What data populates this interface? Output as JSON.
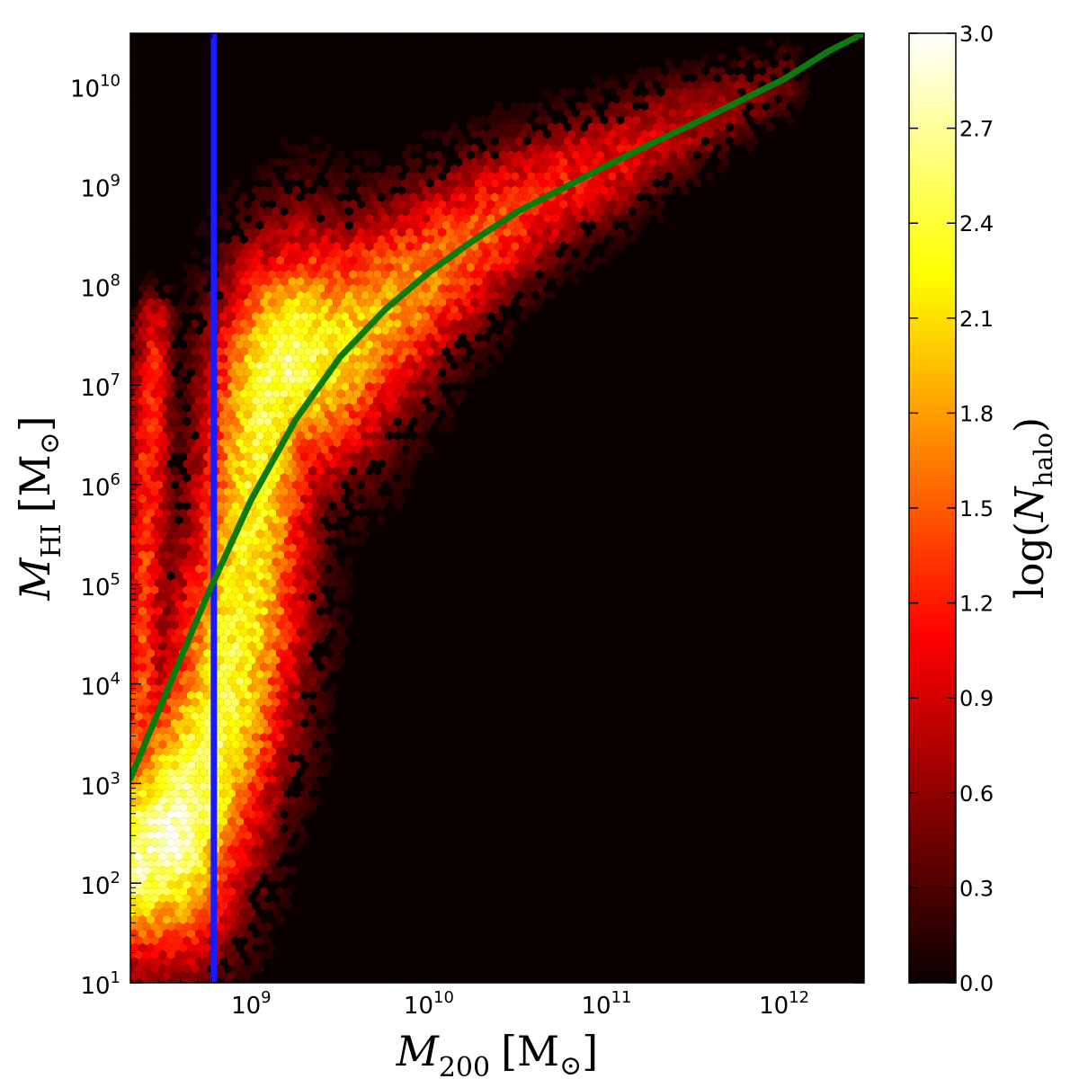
{
  "chart_data": {
    "type": "heatmap",
    "subtype": "hexbin",
    "title": "",
    "xlabel": {
      "symbol": "M",
      "sub": "200",
      "unit": "[M",
      "unit_sub": "⊙",
      "unit_close": "]"
    },
    "ylabel": {
      "symbol": "M",
      "sub": "HI",
      "unit": "[M",
      "unit_sub": "⊙",
      "unit_close": "]"
    },
    "x_scale": "log",
    "y_scale": "log",
    "xlim_log10": [
      8.32,
      12.45
    ],
    "ylim_log10": [
      1.0,
      10.53
    ],
    "x_ticks": [
      {
        "exp": 9,
        "base": "10",
        "sup": "9"
      },
      {
        "exp": 10,
        "base": "10",
        "sup": "10"
      },
      {
        "exp": 11,
        "base": "10",
        "sup": "11"
      },
      {
        "exp": 12,
        "base": "10",
        "sup": "12"
      }
    ],
    "y_ticks": [
      {
        "exp": 1,
        "base": "10",
        "sup": "1"
      },
      {
        "exp": 2,
        "base": "10",
        "sup": "2"
      },
      {
        "exp": 3,
        "base": "10",
        "sup": "3"
      },
      {
        "exp": 4,
        "base": "10",
        "sup": "4"
      },
      {
        "exp": 5,
        "base": "10",
        "sup": "5"
      },
      {
        "exp": 6,
        "base": "10",
        "sup": "6"
      },
      {
        "exp": 7,
        "base": "10",
        "sup": "7"
      },
      {
        "exp": 8,
        "base": "10",
        "sup": "8"
      },
      {
        "exp": 9,
        "base": "10",
        "sup": "9"
      },
      {
        "exp": 10,
        "base": "10",
        "sup": "10"
      }
    ],
    "colorbar": {
      "label": {
        "fn": "log(",
        "symbol": "N",
        "sub": "halo",
        "close": ")"
      },
      "range": [
        0.0,
        3.0
      ],
      "ticks": [
        "0.0",
        "0.3",
        "0.6",
        "0.9",
        "1.2",
        "1.5",
        "1.8",
        "2.1",
        "2.4",
        "2.7",
        "3.0"
      ],
      "colormap": "hot"
    },
    "background_color": "#0a0000",
    "vertical_line": {
      "x_log10": 8.79,
      "color": "#1a1aff"
    },
    "fit_curve": {
      "color": "#0d7a0d",
      "points_log10": [
        [
          8.32,
          3.05
        ],
        [
          8.5,
          3.82
        ],
        [
          8.75,
          4.88
        ],
        [
          9.0,
          5.85
        ],
        [
          9.25,
          6.65
        ],
        [
          9.5,
          7.28
        ],
        [
          9.75,
          7.75
        ],
        [
          10.0,
          8.13
        ],
        [
          10.25,
          8.45
        ],
        [
          10.5,
          8.74
        ],
        [
          10.75,
          8.97
        ],
        [
          11.0,
          9.2
        ],
        [
          11.25,
          9.42
        ],
        [
          11.5,
          9.63
        ],
        [
          11.75,
          9.85
        ],
        [
          12.0,
          10.07
        ],
        [
          12.25,
          10.35
        ],
        [
          12.45,
          10.53
        ]
      ]
    },
    "density_ridges": [
      {
        "points_log10": [
          [
            8.32,
            2.2
          ],
          [
            8.55,
            2.5
          ],
          [
            8.7,
            3.0
          ],
          [
            8.85,
            3.8
          ],
          [
            8.95,
            4.8
          ],
          [
            9.0,
            5.6
          ],
          [
            9.05,
            6.4
          ],
          [
            9.1,
            7.0
          ],
          [
            9.2,
            7.25
          ],
          [
            9.3,
            7.3
          ],
          [
            9.45,
            7.35
          ],
          [
            9.6,
            7.55
          ],
          [
            9.8,
            7.8
          ],
          [
            10.0,
            8.1
          ],
          [
            10.25,
            8.45
          ],
          [
            10.5,
            8.75
          ],
          [
            10.75,
            9.0
          ],
          [
            11.0,
            9.2
          ],
          [
            11.25,
            9.45
          ],
          [
            11.5,
            9.65
          ],
          [
            11.75,
            9.85
          ],
          [
            12.0,
            10.05
          ]
        ],
        "width_log10": [
          0.28,
          0.35,
          0.33,
          0.33,
          0.32,
          0.3,
          0.3,
          0.3,
          0.33,
          0.35,
          0.33,
          0.3,
          0.27,
          0.24,
          0.22,
          0.2,
          0.18,
          0.17,
          0.15,
          0.14,
          0.12,
          0.1
        ],
        "peak_log10": [
          2.7,
          2.85,
          2.6,
          2.4,
          2.3,
          2.25,
          2.3,
          2.5,
          2.6,
          2.45,
          2.2,
          2.0,
          1.85,
          1.7,
          1.55,
          1.35,
          1.2,
          1.05,
          0.9,
          0.75,
          0.6,
          0.45
        ]
      },
      {
        "points_log10": [
          [
            8.34,
            2.0
          ],
          [
            8.36,
            3.0
          ],
          [
            8.38,
            4.0
          ],
          [
            8.4,
            5.0
          ],
          [
            8.42,
            6.0
          ],
          [
            8.44,
            7.0
          ],
          [
            8.46,
            7.6
          ]
        ],
        "width_log10": [
          0.12,
          0.12,
          0.12,
          0.12,
          0.12,
          0.12,
          0.1
        ],
        "peak_log10": [
          1.6,
          1.6,
          1.45,
          1.35,
          1.3,
          1.2,
          1.0
        ]
      }
    ]
  }
}
